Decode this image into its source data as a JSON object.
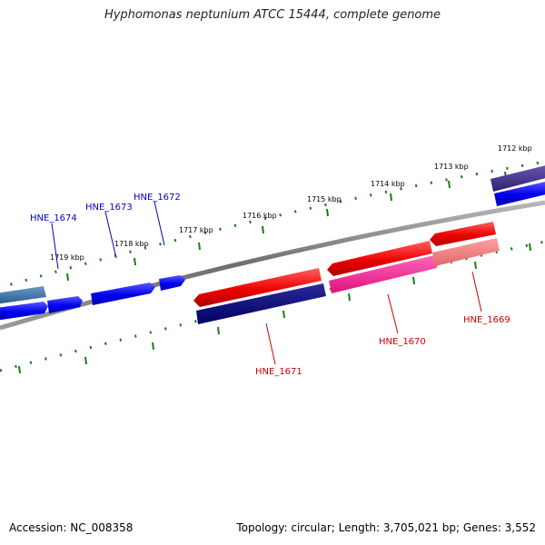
{
  "title": "Hyphomonas neptunium ATCC 15444, complete genome",
  "footer": {
    "accession": "Accession: NC_008358",
    "summary": "Topology: circular; Length: 3,705,021 bp; Genes: 3,552"
  },
  "colors": {
    "forward_strand": "#0000ee",
    "reverse_strand": "#ee0000",
    "tick": "#1a7a1a",
    "backbone": "#808080"
  },
  "kbp_labels": [
    "1712 kbp",
    "1713 kbp",
    "1714 kbp",
    "1715 kbp",
    "1716 kbp",
    "1717 kbp",
    "1718 kbp",
    "1719 kbp"
  ],
  "gene_labels": [
    {
      "text": "HNE_1674",
      "strand": "forward"
    },
    {
      "text": "HNE_1673",
      "strand": "forward"
    },
    {
      "text": "HNE_1672",
      "strand": "forward"
    },
    {
      "text": "HNE_1671",
      "strand": "reverse"
    },
    {
      "text": "HNE_1670",
      "strand": "reverse"
    },
    {
      "text": "HNE_1669",
      "strand": "reverse"
    }
  ]
}
